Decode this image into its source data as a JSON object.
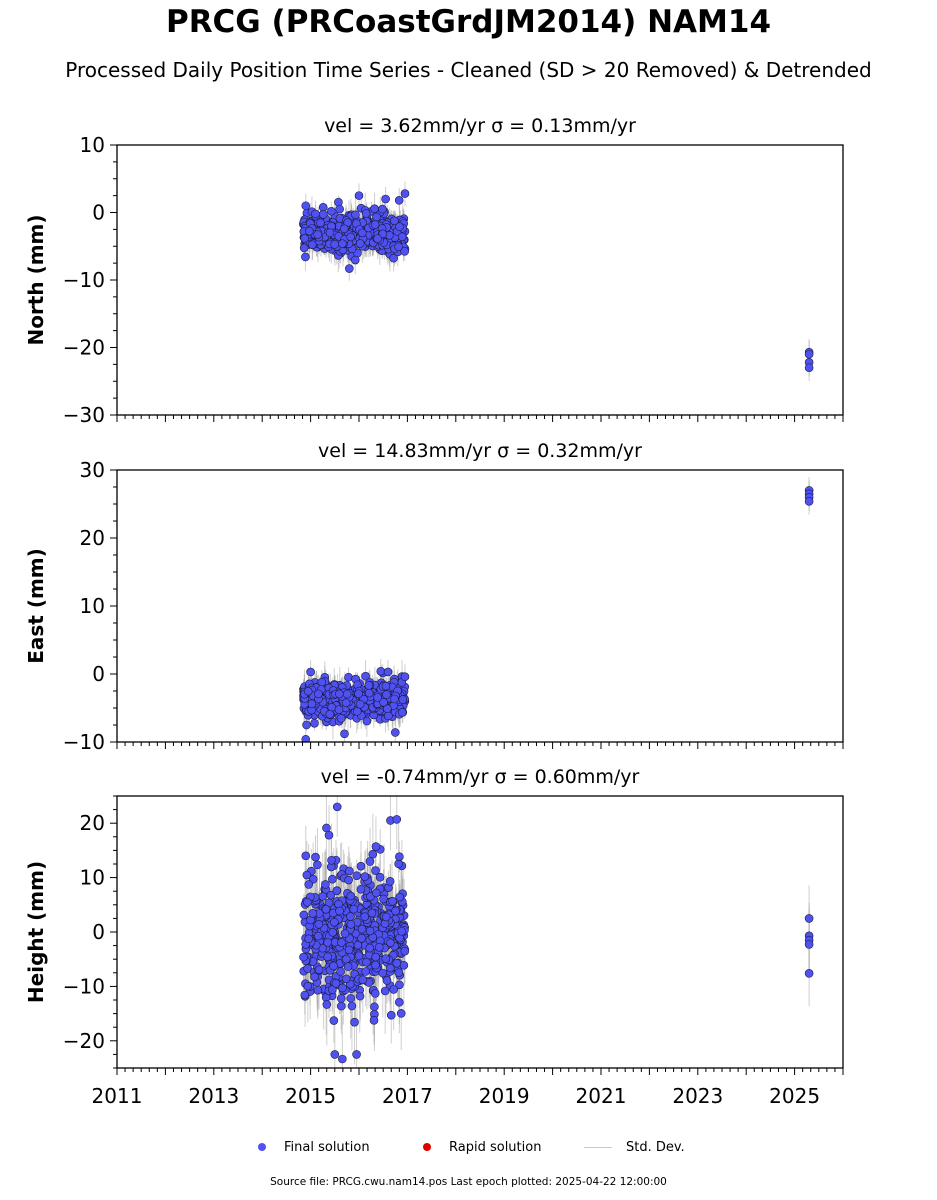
{
  "title": "PRCG (PRCoastGrdJM2014) NAM14",
  "subtitle": "Processed Daily Position Time Series - Cleaned (SD > 20 Removed) & Detrended",
  "legend": {
    "final": "Final solution",
    "rapid": "Rapid solution",
    "std": "Std. Dev."
  },
  "footer": "Source file: PRCG.cwu.nam14.pos  Last epoch plotted: 2025-04-22 12:00:00",
  "colors": {
    "final": "#4f52f0",
    "rapid": "#e00000",
    "std": "#a8a8a8",
    "axis": "#000000"
  },
  "chart_data": [
    {
      "type": "scatter",
      "title": "vel = 3.62mm/yr   σ = 0.13mm/yr",
      "ylabel": "North (mm)",
      "xlim": [
        2011,
        2026
      ],
      "ylim": [
        -30,
        10
      ],
      "yticks": [
        10,
        0,
        -10,
        -20,
        -30
      ],
      "xticks": [
        "2011",
        "2013",
        "2015",
        "2017",
        "2019",
        "2021",
        "2023",
        "2025"
      ],
      "series": [
        {
          "name": "Final solution",
          "cluster": {
            "x_range": [
              2014.85,
              2016.95
            ],
            "center": -3.0,
            "spread": 1.3,
            "sd": 1.8,
            "count": 560
          },
          "points": [
            [
              2014.9,
              1.0
            ],
            [
              2015.4,
              -3.0
            ],
            [
              2015.6,
              0.5
            ],
            [
              2015.8,
              -8.3
            ],
            [
              2016.0,
              2.5
            ],
            [
              2016.55,
              2.0
            ],
            [
              2016.83,
              1.8
            ],
            [
              2016.95,
              2.8
            ]
          ],
          "late_points": [
            [
              2025.3,
              -20.7
            ],
            [
              2025.3,
              -21.0
            ],
            [
              2025.3,
              -22.2
            ],
            [
              2025.3,
              -23.0
            ]
          ]
        }
      ]
    },
    {
      "type": "scatter",
      "title": "vel = 14.83mm/yr   σ = 0.32mm/yr",
      "ylabel": "East (mm)",
      "xlim": [
        2011,
        2026
      ],
      "ylim": [
        -10,
        30
      ],
      "yticks": [
        30,
        20,
        10,
        0,
        -10
      ],
      "xticks": [
        "2011",
        "2013",
        "2015",
        "2017",
        "2019",
        "2021",
        "2023",
        "2025"
      ],
      "series": [
        {
          "name": "Final solution",
          "cluster": {
            "x_range": [
              2014.85,
              2016.95
            ],
            "center": -3.8,
            "spread": 1.3,
            "sd": 1.8,
            "count": 560
          },
          "points": [
            [
              2014.9,
              -9.6
            ],
            [
              2015.0,
              0.3
            ],
            [
              2016.45,
              0.4
            ],
            [
              2016.6,
              0.3
            ],
            [
              2016.75,
              -8.6
            ],
            [
              2016.95,
              -0.4
            ],
            [
              2015.7,
              -8.8
            ]
          ],
          "late_points": [
            [
              2025.3,
              27.0
            ],
            [
              2025.3,
              26.5
            ],
            [
              2025.3,
              26.0
            ],
            [
              2025.3,
              25.4
            ]
          ]
        }
      ]
    },
    {
      "type": "scatter",
      "title": "vel = -0.74mm/yr   σ = 0.60mm/yr",
      "ylabel": "Height (mm)",
      "xlim": [
        2011,
        2026
      ],
      "ylim": [
        -25,
        25
      ],
      "yticks": [
        20,
        10,
        0,
        -10,
        -20
      ],
      "xticks": [
        "2011",
        "2013",
        "2015",
        "2017",
        "2019",
        "2021",
        "2023",
        "2025"
      ],
      "series": [
        {
          "name": "Final solution",
          "cluster": {
            "x_range": [
              2014.85,
              2016.95
            ],
            "center": -1.0,
            "spread": 6.0,
            "sd": 5.5,
            "count": 560
          },
          "points": [
            [
              2015.55,
              23.0
            ],
            [
              2016.65,
              20.5
            ],
            [
              2016.78,
              20.7
            ],
            [
              2015.5,
              -22.5
            ],
            [
              2015.95,
              -22.5
            ],
            [
              2014.9,
              14.0
            ],
            [
              2015.38,
              17.8
            ],
            [
              2016.35,
              15.7
            ]
          ],
          "late_points": [
            [
              2025.3,
              2.5
            ],
            [
              2025.3,
              -0.7
            ],
            [
              2025.3,
              -1.5
            ],
            [
              2025.3,
              -2.3
            ],
            [
              2025.3,
              -7.6
            ]
          ]
        }
      ]
    }
  ]
}
